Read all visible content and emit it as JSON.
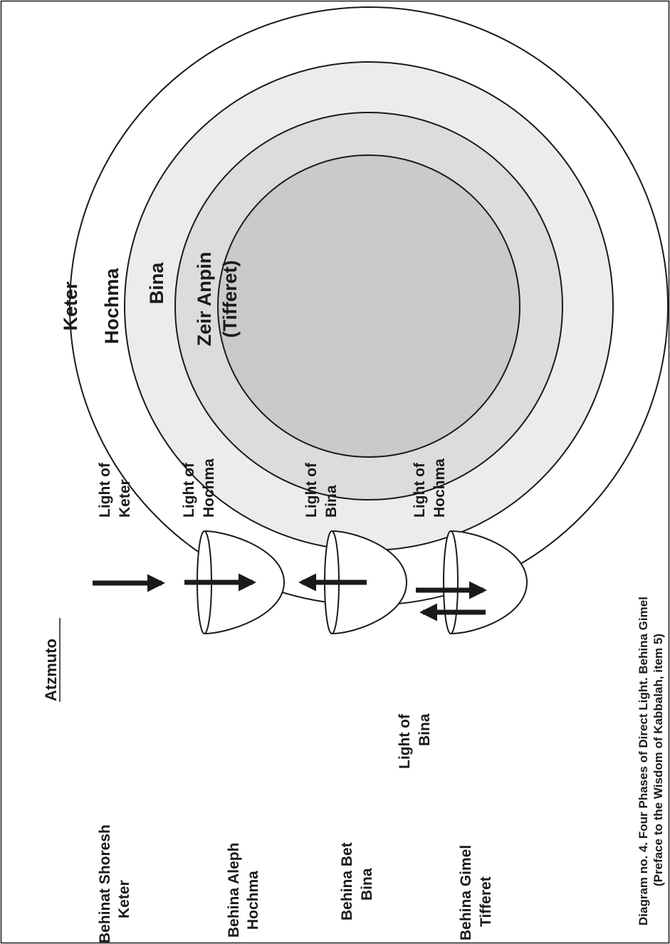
{
  "figure": {
    "caption_line1": "Diagram no. 4. Four Phases of Direct Light. Behina Gimel",
    "caption_line2": "(Preface to the Wisdom of Kabbalah, item 5)"
  },
  "circles": {
    "keter": "Keter",
    "hochma": "Hochma",
    "bina": "Bina",
    "zeir_anpin_line1": "Zeir Anpin",
    "zeir_anpin_line2": "(Tifferet)",
    "colors": {
      "keter_fill": "#ffffff",
      "hochma_fill": "#ececec",
      "bina_fill": "#dcdcdc",
      "zeir_anpin_fill": "#cacaca",
      "stroke": "#1a1a1a"
    }
  },
  "source": {
    "label": "Atzmuto"
  },
  "phases": [
    {
      "name_line1": "Behinat Shoresh",
      "name_line2": "Keter",
      "light_line1": "Light of",
      "light_line2": "Keter"
    },
    {
      "name_line1": "Behina Aleph",
      "name_line2": "Hochma",
      "light_line1": "Light of",
      "light_line2": "Hochma"
    },
    {
      "name_line1": "Behina Bet",
      "name_line2": "Bina",
      "light_line1": "Light of",
      "light_line2": "Bina"
    },
    {
      "name_line1": "Behina Gimel",
      "name_line2": "Tifferet",
      "light_line1": "Light of",
      "light_line2": "Hochma",
      "back_light_line1": "Light of",
      "back_light_line2": "Bina"
    }
  ]
}
